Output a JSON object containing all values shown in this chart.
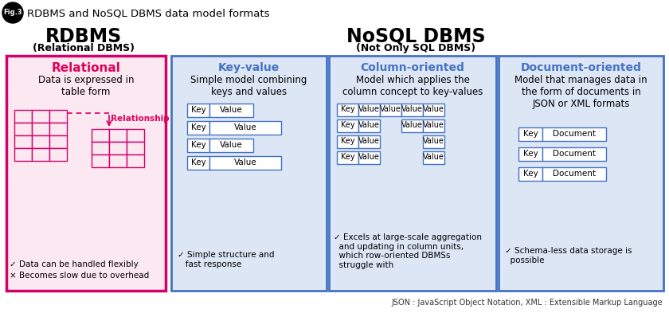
{
  "fig_label": "Fig.3",
  "title": "RDBMS and NoSQL DBMS data model formats",
  "bg_color": "#ffffff",
  "rdbms_title": "RDBMS",
  "rdbms_subtitle": "(Relational DBMS)",
  "nosql_title": "NoSQL DBMS",
  "nosql_subtitle": "(Not Only SQL DBMS)",
  "relational_title": "Relational",
  "relational_desc": "Data is expressed in\ntable form",
  "relational_note1": "✓ Data can be handled flexibly",
  "relational_note2": "× Becomes slow due to overhead",
  "relational_box_bg": "#fce8f0",
  "relational_box_border": "#d4006a",
  "relational_title_color": "#e0005a",
  "relationship_label": "Relationship",
  "kv_title": "Key-value",
  "kv_desc": "Simple model combining\nkeys and values",
  "kv_note": "✓ Simple structure and\n   fast response",
  "kv_box_bg": "#dde6f5",
  "kv_box_border": "#4472c4",
  "kv_title_color": "#4472c4",
  "col_title": "Column-oriented",
  "col_desc": "Model which applies the\ncolumn concept to key-values",
  "col_note": "✓ Excels at large-scale aggregation\n  and updating in column units,\n  which row-oriented DBMSs\n  struggle with",
  "col_box_bg": "#dde6f5",
  "col_box_border": "#4472c4",
  "col_title_color": "#4472c4",
  "doc_title": "Document-oriented",
  "doc_desc": "Model that manages data in\nthe form of documents in\nJSON or XML formats",
  "doc_note": "✓ Schema-less data storage is\n  possible",
  "doc_box_bg": "#dde6f5",
  "doc_box_border": "#4472c4",
  "doc_title_color": "#4472c4",
  "footnote": "JSON : JavaScript Object Notation, XML : Extensible Markup Language",
  "cell_border": "#4472c4",
  "table_border": "#d4006a"
}
